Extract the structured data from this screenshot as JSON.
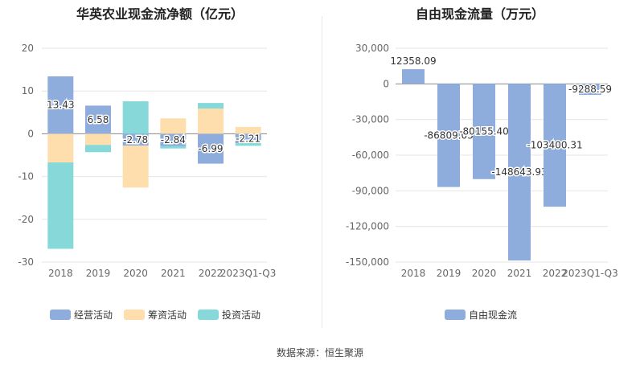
{
  "source_note": "数据来源：恒生聚源",
  "chart_data": [
    {
      "type": "bar",
      "stacked": true,
      "title": "华英农业现金流净额（亿元）",
      "categories": [
        "2018",
        "2019",
        "2020",
        "2021",
        "2022",
        "2023Q1-Q3"
      ],
      "ylim": [
        -30,
        20
      ],
      "yticks": [
        20,
        10,
        0,
        -10,
        -20,
        -30
      ],
      "grid": true,
      "legend_position": "bottom",
      "series": [
        {
          "name": "经营活动",
          "color": "#8eacdc",
          "values": [
            13.43,
            6.58,
            -2.78,
            -2.84,
            -6.99,
            -2.21
          ],
          "labels": [
            "13.43",
            "6.58",
            "-2.78",
            "-2.84",
            "-6.99",
            "-2.21"
          ]
        },
        {
          "name": "筹资活动",
          "color": "#fddeac",
          "values": [
            -6.7,
            -2.6,
            -9.8,
            3.6,
            5.9,
            1.6
          ]
        },
        {
          "name": "投资活动",
          "color": "#86d9d8",
          "values": [
            -20.2,
            -1.7,
            7.6,
            -0.6,
            1.3,
            -0.6
          ]
        }
      ]
    },
    {
      "type": "bar",
      "title": "自由现金流量（万元）",
      "categories": [
        "2018",
        "2019",
        "2020",
        "2021",
        "2022",
        "2023Q1-Q3"
      ],
      "ylim": [
        -150000,
        30000
      ],
      "yticks": [
        "30,000",
        "0",
        "-30,000",
        "-60,000",
        "-90,000",
        "-120,000",
        "-150,000"
      ],
      "ytick_values": [
        30000,
        0,
        -30000,
        -60000,
        -90000,
        -120000,
        -150000
      ],
      "grid": true,
      "legend_position": "bottom",
      "series": [
        {
          "name": "自由现金流",
          "color": "#8eacdc",
          "values": [
            12358.09,
            -86809.03,
            -80155.4,
            -148643.93,
            -103400.31,
            -9288.59
          ],
          "labels": [
            "12358.09",
            "-86809.03",
            "-80155.40",
            "-148643.93",
            "-103400.31",
            "-9288.59"
          ]
        }
      ]
    }
  ]
}
